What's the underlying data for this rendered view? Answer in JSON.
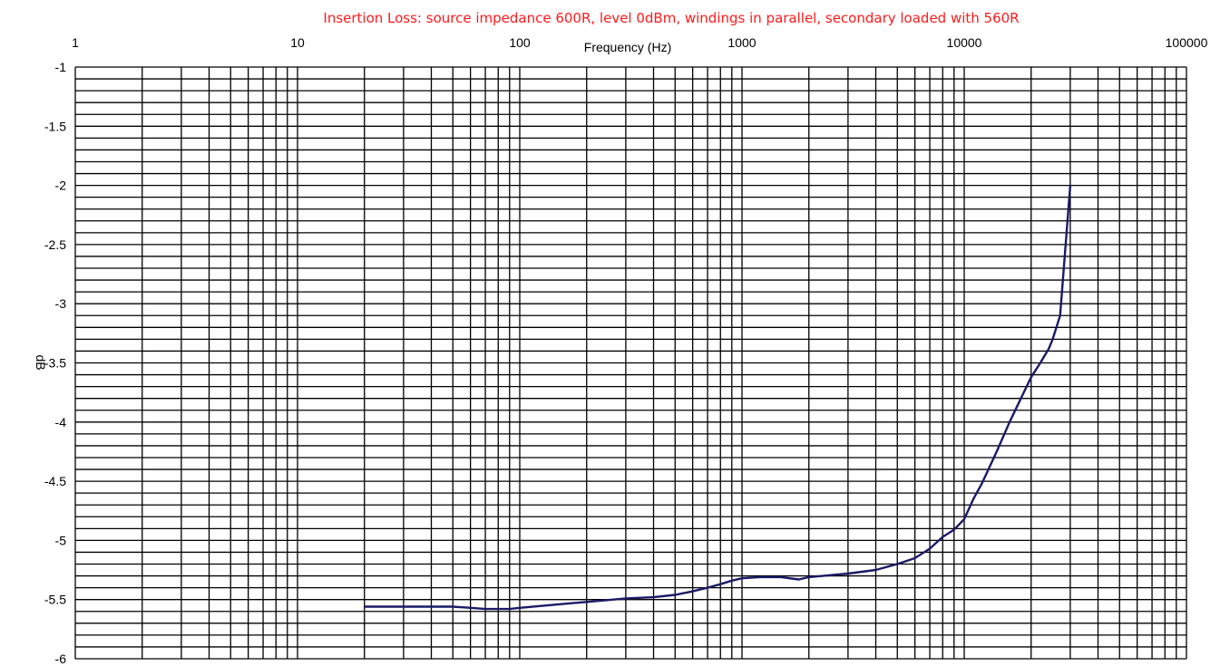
{
  "chart_data": {
    "type": "line",
    "title": "Insertion Loss: source impedance 600R, level 0dBm, windings in parallel, secondary loaded with 560R",
    "xlabel": "Frequency (Hz)",
    "ylabel": "dB",
    "xscale": "log",
    "xlim": [
      1,
      100000
    ],
    "ylim": [
      -6,
      -1
    ],
    "x_ticks": [
      "1",
      "10",
      "100",
      "1000",
      "10000",
      "100000"
    ],
    "y_ticks": [
      "-1",
      "-1.5",
      "-2",
      "-2.5",
      "-3",
      "-3.5",
      "-4",
      "-4.5",
      "-5",
      "-5.5",
      "-6"
    ],
    "x_axis_position": "top",
    "y_minor_step": 0.1,
    "grid": true,
    "line_color": "#1a1a66",
    "series": [
      {
        "x": [
          20,
          30,
          40,
          50,
          60,
          70,
          80,
          90,
          100,
          150,
          200,
          300,
          400,
          500,
          600,
          700,
          800,
          900,
          1000,
          1200,
          1500,
          1800,
          2000,
          3000,
          4000,
          5000,
          6000,
          7000,
          8000,
          9000,
          10000,
          11000,
          12000,
          14000,
          16000,
          18000,
          20000,
          22000,
          24000,
          25000,
          27000,
          30000
        ],
        "y": [
          -5.56,
          -5.56,
          -5.56,
          -5.56,
          -5.57,
          -5.58,
          -5.58,
          -5.58,
          -5.57,
          -5.54,
          -5.52,
          -5.49,
          -5.48,
          -5.46,
          -5.43,
          -5.4,
          -5.37,
          -5.34,
          -5.32,
          -5.31,
          -5.31,
          -5.33,
          -5.31,
          -5.28,
          -5.25,
          -5.2,
          -5.15,
          -5.07,
          -4.97,
          -4.91,
          -4.82,
          -4.65,
          -4.52,
          -4.25,
          -4.0,
          -3.8,
          -3.62,
          -3.5,
          -3.38,
          -3.3,
          -3.1,
          -2.0
        ]
      }
    ]
  }
}
